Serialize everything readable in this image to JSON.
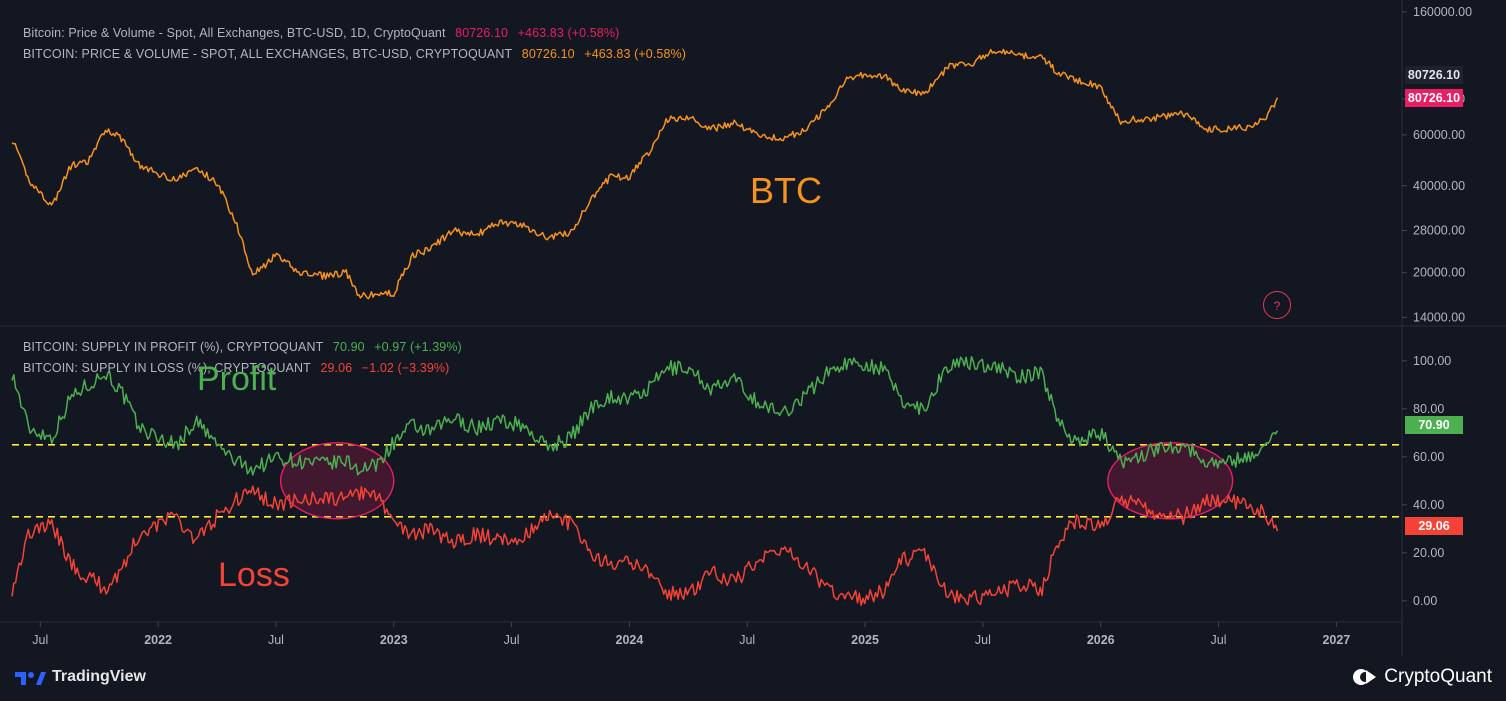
{
  "legend": {
    "top1": {
      "title": "Bitcoin: Price & Volume - Spot, All Exchanges, BTC-USD, 1D, CryptoQuant",
      "value": "80726.10",
      "change": "+463.83 (+0.58%)",
      "color": "#e91e63"
    },
    "top2": {
      "title": "BITCOIN: PRICE & VOLUME - SPOT, ALL EXCHANGES, BTC-USD, CRYPTOQUANT",
      "value": "80726.10",
      "change": "+463.83 (+0.58%)",
      "color": "#f7931a"
    },
    "bottom1": {
      "title": "BITCOIN: SUPPLY IN PROFIT (%), CRYPTOQUANT",
      "value": "70.90",
      "change": "+0.97 (+1.39%)",
      "color": "#4caf50"
    },
    "bottom2": {
      "title": "BITCOIN: SUPPLY IN LOSS (%), CRYPTOQUANT",
      "value": "29.06",
      "change": "−1.02 (−3.39%)",
      "color": "#f44336"
    }
  },
  "annotations": {
    "btc": "BTC",
    "profit": "Profit",
    "loss": "Loss"
  },
  "price_tags": {
    "last_gray": "80726.10",
    "last_red": "80726.10",
    "profit": "70.90",
    "loss": "29.06"
  },
  "footer": {
    "tradingview": "TradingView",
    "cryptoquant": "CryptoQuant"
  },
  "question_icon_label": "?",
  "colors": {
    "background": "#131722",
    "btc": "#f7931a",
    "profit": "#4caf50",
    "loss": "#f44336",
    "threshold": "#ffeb3b",
    "ellipse": "#e91e63"
  },
  "chart_data": [
    {
      "type": "line",
      "pane": "price",
      "scale": "log",
      "x_range": [
        2021.38,
        2027.27
      ],
      "ylim": [
        13500,
        165000
      ],
      "y_ticks": [
        "160000.00",
        "80000.00",
        "60000.00",
        "40000.00",
        "28000.00",
        "20000.00",
        "14000.00"
      ],
      "y_tick_values": [
        160000,
        80000,
        60000,
        40000,
        28000,
        20000,
        14000
      ],
      "series": [
        {
          "name": "BTC",
          "x": [
            2021.38,
            2021.45,
            2021.55,
            2021.63,
            2021.7,
            2021.78,
            2021.85,
            2021.92,
            2022.0,
            2022.08,
            2022.16,
            2022.25,
            2022.33,
            2022.4,
            2022.45,
            2022.5,
            2022.6,
            2022.7,
            2022.8,
            2022.85,
            2022.92,
            2023.0,
            2023.08,
            2023.15,
            2023.25,
            2023.35,
            2023.45,
            2023.55,
            2023.65,
            2023.75,
            2023.85,
            2023.92,
            2024.0,
            2024.08,
            2024.16,
            2024.25,
            2024.35,
            2024.45,
            2024.55,
            2024.65,
            2024.75,
            2024.85,
            2024.92,
            2025.0,
            2025.08,
            2025.16,
            2025.25,
            2025.35,
            2025.45,
            2025.55,
            2025.65,
            2025.75,
            2025.82,
            2025.9,
            2026.0,
            2026.08,
            2026.16,
            2026.25,
            2026.35,
            2026.45,
            2026.55,
            2026.62,
            2026.7,
            2026.75
          ],
          "y": [
            58000,
            42000,
            34000,
            47000,
            48000,
            63000,
            58000,
            47000,
            44000,
            42000,
            46000,
            41000,
            30000,
            20000,
            21000,
            23000,
            20000,
            19500,
            20000,
            16500,
            16800,
            17000,
            23000,
            24000,
            28000,
            27000,
            30000,
            29000,
            26500,
            27500,
            37000,
            43000,
            43000,
            52000,
            68000,
            69000,
            63000,
            66000,
            60000,
            58000,
            63000,
            76000,
            95000,
            97000,
            96000,
            85000,
            83000,
            103000,
            106000,
            118000,
            113000,
            112000,
            98000,
            93000,
            88000,
            67000,
            68000,
            69000,
            71000,
            63000,
            63000,
            64000,
            68000,
            80726
          ]
        }
      ]
    },
    {
      "type": "line",
      "pane": "supply",
      "x_range": [
        2021.38,
        2027.27
      ],
      "ylim": [
        -8,
        112
      ],
      "y_ticks": [
        "100.00",
        "80.00",
        "60.00",
        "40.00",
        "20.00",
        "0.00"
      ],
      "y_tick_values": [
        100,
        80,
        60,
        40,
        20,
        0
      ],
      "threshold_lines": [
        65,
        35
      ],
      "series": [
        {
          "name": "SUPPLY IN PROFIT (%)",
          "x": [
            2021.38,
            2021.45,
            2021.55,
            2021.63,
            2021.7,
            2021.78,
            2021.85,
            2021.92,
            2022.0,
            2022.08,
            2022.16,
            2022.25,
            2022.33,
            2022.4,
            2022.45,
            2022.5,
            2022.6,
            2022.7,
            2022.8,
            2022.85,
            2022.92,
            2023.0,
            2023.08,
            2023.15,
            2023.25,
            2023.35,
            2023.45,
            2023.55,
            2023.65,
            2023.75,
            2023.85,
            2023.92,
            2024.0,
            2024.08,
            2024.16,
            2024.25,
            2024.35,
            2024.45,
            2024.55,
            2024.65,
            2024.75,
            2024.85,
            2024.92,
            2025.0,
            2025.08,
            2025.16,
            2025.25,
            2025.35,
            2025.45,
            2025.55,
            2025.65,
            2025.75,
            2025.82,
            2025.9,
            2026.0,
            2026.08,
            2026.16,
            2026.25,
            2026.35,
            2026.45,
            2026.55,
            2026.62,
            2026.7,
            2026.75
          ],
          "y": [
            95,
            72,
            68,
            85,
            90,
            95,
            86,
            72,
            68,
            65,
            75,
            65,
            58,
            55,
            57,
            60,
            58,
            57,
            58,
            55,
            56,
            66,
            73,
            70,
            76,
            72,
            75,
            73,
            64,
            68,
            82,
            85,
            84,
            88,
            97,
            97,
            88,
            92,
            82,
            78,
            86,
            96,
            99,
            99,
            96,
            83,
            80,
            98,
            99,
            98,
            93,
            95,
            75,
            66,
            70,
            58,
            60,
            64,
            65,
            58,
            58,
            60,
            64,
            70.9
          ]
        },
        {
          "name": "SUPPLY IN LOSS (%)",
          "x": [
            2021.38,
            2021.45,
            2021.55,
            2021.63,
            2021.7,
            2021.78,
            2021.85,
            2021.92,
            2022.0,
            2022.08,
            2022.16,
            2022.25,
            2022.33,
            2022.4,
            2022.45,
            2022.5,
            2022.6,
            2022.7,
            2022.8,
            2022.85,
            2022.92,
            2023.0,
            2023.08,
            2023.15,
            2023.25,
            2023.35,
            2023.45,
            2023.55,
            2023.65,
            2023.75,
            2023.85,
            2023.92,
            2024.0,
            2024.08,
            2024.16,
            2024.25,
            2024.35,
            2024.45,
            2024.55,
            2024.65,
            2024.75,
            2024.85,
            2024.92,
            2025.0,
            2025.08,
            2025.16,
            2025.25,
            2025.35,
            2025.45,
            2025.55,
            2025.65,
            2025.75,
            2025.82,
            2025.9,
            2026.0,
            2026.08,
            2026.16,
            2026.25,
            2026.35,
            2026.45,
            2026.55,
            2026.62,
            2026.7,
            2026.75
          ],
          "y": [
            5,
            28,
            32,
            15,
            10,
            5,
            14,
            28,
            32,
            35,
            25,
            35,
            42,
            45,
            43,
            40,
            42,
            43,
            42,
            45,
            44,
            34,
            27,
            30,
            24,
            28,
            25,
            27,
            36,
            32,
            18,
            15,
            16,
            12,
            3,
            3,
            12,
            8,
            18,
            22,
            14,
            4,
            1,
            1,
            4,
            17,
            20,
            2,
            1,
            2,
            7,
            5,
            25,
            34,
            30,
            42,
            40,
            36,
            35,
            42,
            42,
            40,
            36,
            29.06
          ]
        }
      ],
      "highlight_regions": [
        [
          2022.52,
          2023.0
        ],
        [
          2026.03,
          2026.56
        ]
      ]
    }
  ],
  "x_axis": {
    "labels": [
      "Jul",
      "2022",
      "Jul",
      "2023",
      "Jul",
      "2024",
      "Jul",
      "2025",
      "Jul",
      "2026",
      "Jul",
      "2027"
    ],
    "values": [
      2021.5,
      2022.0,
      2022.5,
      2023.0,
      2023.5,
      2024.0,
      2024.5,
      2025.0,
      2025.5,
      2026.0,
      2026.5,
      2027.0
    ]
  }
}
